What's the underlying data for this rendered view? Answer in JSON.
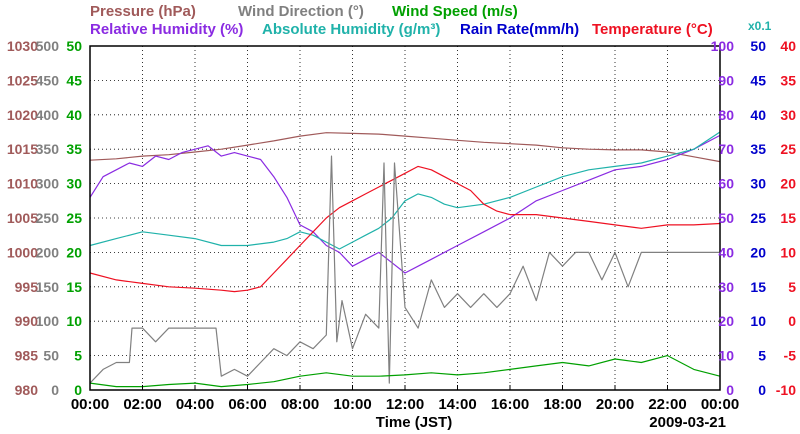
{
  "chart_data": {
    "type": "line",
    "title": "",
    "date": "2009-03-21",
    "x_axis": {
      "label": "Time (JST)",
      "unit": "hour",
      "range": [
        0,
        24
      ],
      "ticks": [
        "00:00",
        "02:00",
        "04:00",
        "06:00",
        "08:00",
        "10:00",
        "12:00",
        "14:00",
        "16:00",
        "18:00",
        "20:00",
        "22:00",
        "00:00"
      ],
      "tick_values": [
        0,
        2,
        4,
        6,
        8,
        10,
        12,
        14,
        16,
        18,
        20,
        22,
        24
      ],
      "grid": true
    },
    "legend": {
      "row1": [
        {
          "key": "pressure",
          "label": "Pressure (hPa)"
        },
        {
          "key": "wind_direction",
          "label": "Wind Direction (°)"
        },
        {
          "key": "wind_speed",
          "label": "Wind Speed (m/s)"
        }
      ],
      "row2": [
        {
          "key": "relative_humidity",
          "label": "Relative Humidity (%)"
        },
        {
          "key": "absolute_humidity",
          "label": "Absolute Humidity (g/m³)"
        },
        {
          "key": "absolute_humidity_scale_note",
          "label": "x0.1"
        },
        {
          "key": "rain_rate",
          "label": "Rain Rate(mm/h)"
        },
        {
          "key": "temperature",
          "label": "Temperature (°C)"
        }
      ]
    },
    "y_axes": [
      {
        "key": "pressure",
        "side": "left",
        "order": 0,
        "color": "#a05a5a",
        "range": [
          980,
          1030
        ],
        "ticks": [
          "1030",
          "1025",
          "1020",
          "1015",
          "1010",
          "1005",
          "1000",
          "995",
          "990",
          "985",
          "980"
        ]
      },
      {
        "key": "wind_direction",
        "side": "left",
        "order": 1,
        "color": "#808080",
        "range": [
          0,
          500
        ],
        "ticks": [
          "500",
          "450",
          "400",
          "350",
          "300",
          "250",
          "200",
          "150",
          "100",
          "50",
          "0"
        ]
      },
      {
        "key": "wind_speed",
        "side": "left",
        "order": 2,
        "color": "#00a000",
        "range": [
          0,
          50
        ],
        "ticks": [
          "50",
          "45",
          "40",
          "35",
          "30",
          "25",
          "20",
          "15",
          "10",
          "5",
          "0"
        ]
      },
      {
        "key": "relative_humidity",
        "side": "right",
        "order": 0,
        "color": "#8a2be2",
        "range": [
          0,
          100
        ],
        "ticks": [
          "100",
          "90",
          "80",
          "70",
          "60",
          "50",
          "40",
          "30",
          "20",
          "10",
          "0"
        ]
      },
      {
        "key": "rain_rate",
        "side": "right",
        "order": 1,
        "color": "#0000cc",
        "range": [
          0,
          50
        ],
        "ticks": [
          "50",
          "45",
          "40",
          "35",
          "30",
          "25",
          "20",
          "15",
          "10",
          "5",
          "0"
        ]
      },
      {
        "key": "temperature",
        "side": "right",
        "order": 2,
        "color": "#ee1122",
        "range": [
          -10,
          40
        ],
        "ticks": [
          "40",
          "35",
          "30",
          "25",
          "20",
          "15",
          "10",
          "5",
          "0",
          "-5",
          "-10"
        ]
      }
    ],
    "series": [
      {
        "name": "Pressure (hPa)",
        "key": "pressure",
        "axis": "pressure",
        "color": "#a05a5a",
        "x": [
          0,
          1,
          2,
          3,
          4,
          5,
          6,
          7,
          8,
          9,
          10,
          11,
          12,
          13,
          14,
          15,
          16,
          17,
          18,
          19,
          20,
          21,
          22,
          23,
          24
        ],
        "values": [
          1013.4,
          1013.6,
          1014.0,
          1014.2,
          1014.6,
          1015.0,
          1015.6,
          1016.2,
          1016.9,
          1017.4,
          1017.3,
          1017.2,
          1016.9,
          1016.6,
          1016.3,
          1016.0,
          1015.8,
          1015.6,
          1015.2,
          1015.0,
          1014.9,
          1014.9,
          1014.6,
          1013.9,
          1013.2
        ]
      },
      {
        "name": "Relative Humidity (%)",
        "key": "relative_humidity",
        "axis": "relative_humidity",
        "color": "#8a2be2",
        "x": [
          0,
          0.5,
          1,
          1.5,
          2,
          2.5,
          3,
          3.5,
          4,
          4.5,
          5,
          5.5,
          6,
          6.5,
          7,
          7.5,
          8,
          8.5,
          9,
          9.5,
          10,
          10.5,
          11,
          11.5,
          12,
          12.5,
          13,
          14,
          15,
          16,
          17,
          18,
          19,
          20,
          21,
          22,
          23,
          24
        ],
        "values": [
          56,
          62,
          64,
          66,
          65,
          68,
          67,
          69,
          70,
          71,
          68,
          69,
          68,
          67,
          62,
          56,
          48,
          46,
          42,
          40,
          36,
          38,
          40,
          37,
          34,
          36,
          38,
          42,
          46,
          50,
          55,
          58,
          61,
          64,
          65,
          67,
          70,
          74
        ]
      },
      {
        "name": "Absolute Humidity (g/m³)",
        "key": "absolute_humidity",
        "axis": "relative_humidity",
        "color": "#20b2aa",
        "x": [
          0,
          1,
          2,
          3,
          4,
          5,
          6,
          7,
          7.5,
          8,
          8.5,
          9,
          9.5,
          10,
          10.5,
          11,
          11.5,
          12,
          12.5,
          13,
          13.5,
          14,
          15,
          16,
          17,
          18,
          19,
          20,
          21,
          22,
          23,
          24
        ],
        "values": [
          42,
          44,
          46,
          45,
          44,
          42,
          42,
          43,
          44,
          46,
          45,
          43,
          41,
          43,
          45,
          47,
          50,
          55,
          57,
          56,
          54,
          53,
          54,
          56,
          59,
          62,
          64,
          65,
          66,
          68,
          70,
          75
        ]
      },
      {
        "name": "Temperature (°C)",
        "key": "temperature",
        "axis": "temperature",
        "color": "#ee1122",
        "x": [
          0,
          1,
          2,
          3,
          4,
          5,
          5.5,
          6,
          6.5,
          7,
          7.5,
          8,
          8.5,
          9,
          9.5,
          10,
          10.5,
          11,
          11.5,
          12,
          12.5,
          13,
          13.5,
          14,
          14.5,
          15,
          15.5,
          16,
          17,
          18,
          19,
          20,
          21,
          22,
          23,
          24
        ],
        "values": [
          7,
          6,
          5.5,
          5,
          4.8,
          4.5,
          4.3,
          4.5,
          5,
          7,
          9,
          11,
          13,
          15,
          16.5,
          17.5,
          18.5,
          19.5,
          20.5,
          21.5,
          22.5,
          22,
          21,
          20,
          19,
          17,
          16,
          15.5,
          15.5,
          15,
          14.5,
          14,
          13.5,
          14,
          14,
          14.2
        ]
      },
      {
        "name": "Wind Direction (°)",
        "key": "wind_direction",
        "axis": "wind_direction",
        "color": "#808080",
        "x": [
          0,
          0.5,
          1,
          1.5,
          1.6,
          2,
          2.5,
          3,
          3.5,
          4,
          4.5,
          4.8,
          5,
          5.5,
          6,
          6.5,
          7,
          7.5,
          8,
          8.5,
          9,
          9.2,
          9.4,
          9.6,
          10,
          10.5,
          11,
          11.2,
          11.4,
          11.6,
          12,
          12.5,
          13,
          13.5,
          14,
          14.5,
          15,
          15.5,
          16,
          16.5,
          17,
          17.5,
          18,
          18.5,
          19,
          19.5,
          20,
          20.5,
          21,
          22,
          23,
          24
        ],
        "values": [
          10,
          30,
          40,
          40,
          90,
          90,
          70,
          90,
          90,
          90,
          90,
          90,
          20,
          30,
          20,
          40,
          60,
          50,
          70,
          60,
          80,
          340,
          70,
          130,
          60,
          110,
          90,
          330,
          10,
          330,
          120,
          90,
          160,
          120,
          140,
          120,
          140,
          120,
          140,
          180,
          130,
          200,
          180,
          200,
          200,
          160,
          200,
          150,
          200,
          200,
          200,
          200
        ]
      },
      {
        "name": "Wind Speed (m/s)",
        "key": "wind_speed",
        "axis": "wind_speed",
        "color": "#00a000",
        "x": [
          0,
          1,
          2,
          3,
          4,
          5,
          6,
          7,
          8,
          9,
          10,
          11,
          12,
          13,
          14,
          15,
          16,
          17,
          18,
          19,
          20,
          21,
          22,
          23,
          24
        ],
        "values": [
          1,
          0.5,
          0.5,
          0.8,
          1,
          0.5,
          0.8,
          1.2,
          2,
          2.5,
          2,
          2,
          2.2,
          2.5,
          2.2,
          2.5,
          3,
          3.5,
          4,
          3.5,
          4.5,
          4,
          5,
          3,
          2
        ]
      }
    ],
    "date_text": "2009-03-21"
  }
}
